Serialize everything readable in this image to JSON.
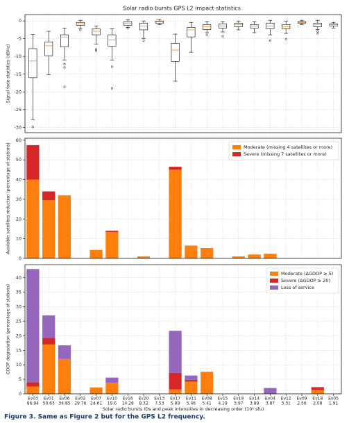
{
  "caption": "Figure 3. Same as Figure 2 but for the GPS L2 frequency.",
  "chart_data": [
    {
      "type": "box",
      "title": "Solar radio bursts GPS L2 impact statistics",
      "ylabel": "Signal fade statistics (dBHz)",
      "ylim": [
        -31.5,
        1.8
      ],
      "yticks": [
        -30,
        -25,
        -20,
        -15,
        -10,
        -5,
        0
      ],
      "grid": true,
      "color": "#000000",
      "median_color": "#ff7f0e",
      "whisker_high": [
        -3.8,
        -2.9,
        -2,
        0.2,
        -1.4,
        -2.2,
        0.4,
        0,
        0.4,
        -3.7,
        -0.4,
        -0.2,
        -0.2,
        0,
        -0.2,
        0.2,
        0,
        0.2,
        0.2,
        -0.4
      ],
      "q3": [
        -7.8,
        -5.9,
        -3.9,
        -0.4,
        -2.2,
        -3.9,
        -0.2,
        -0.6,
        0,
        -6.3,
        -1.8,
        -1,
        -0.8,
        -0.6,
        -1,
        -0.6,
        -1,
        -0.2,
        -0.6,
        -0.8
      ],
      "median": [
        -11.3,
        -7,
        -4.5,
        -0.8,
        -2.9,
        -5.3,
        -0.6,
        -1.4,
        -0.2,
        -8.2,
        -2.5,
        -1.6,
        -1.4,
        -1,
        -1.4,
        -1.4,
        -1.6,
        -0.4,
        -1,
        -1
      ],
      "q1": [
        -16,
        -9.8,
        -7.3,
        -1.2,
        -3.9,
        -7.1,
        -1.2,
        -2.5,
        -0.6,
        -11.4,
        -4.5,
        -2.4,
        -2,
        -1.6,
        -2,
        -2.2,
        -2.2,
        -0.6,
        -1.6,
        -1.4
      ],
      "whisker_low": [
        -27.8,
        -15.1,
        -11,
        -2,
        -6.5,
        -11,
        -1.8,
        -4.9,
        -1,
        -17,
        -8.8,
        -3.3,
        -3.1,
        -2.5,
        -3.3,
        -3.9,
        -3.5,
        -1,
        -2.4,
        -2
      ],
      "outliers": [
        [
          -29.9
        ],
        [],
        [
          -12.2,
          -13.1,
          -18.6
        ],
        [
          -2.5
        ],
        [
          -8,
          -8.4
        ],
        [
          -12.9,
          -19
        ],
        [
          -2
        ],
        [
          -5.5
        ],
        [],
        [],
        [],
        [
          -3.9
        ],
        [
          -4.3
        ],
        [],
        [],
        [
          -5.5
        ],
        [
          -5.1
        ],
        [],
        [
          -2.9,
          -3.5
        ],
        []
      ]
    },
    {
      "type": "bar",
      "stacked": true,
      "ylabel": "Available satellites reduction (percentage of stations)",
      "ylim": [
        0,
        61
      ],
      "yticks": [
        0,
        10,
        20,
        30,
        40,
        50,
        60
      ],
      "grid": true,
      "legend": "upper right",
      "series": [
        {
          "name": "Moderate (missing 4 satellites or more)",
          "color": "#ff7f0e",
          "values": [
            40,
            29.5,
            32,
            0,
            4.3,
            13.3,
            0,
            1,
            0,
            45,
            6.5,
            5.3,
            0,
            1,
            2,
            2.3,
            0,
            0,
            0,
            0
          ]
        },
        {
          "name": "Severe (missing 7 satellites or more)",
          "color": "#d62728",
          "values": [
            17.5,
            4.5,
            0,
            0,
            0,
            0.7,
            0,
            0,
            0,
            1.5,
            0,
            0,
            0,
            0,
            0,
            0,
            0,
            0,
            0,
            0
          ]
        }
      ]
    },
    {
      "type": "bar",
      "stacked": true,
      "ylabel": "GDOP degradation (percentage of stations)",
      "xlabel": "Solar radio bursts IDs and peak intensities in decreasing order (10² sfu)",
      "categories": [
        "Ev03",
        "Ev01",
        "Ev06",
        "Ev02",
        "Ev07",
        "Ev10",
        "Ev16",
        "Ev20",
        "Ev13",
        "Ev17",
        "Ev11",
        "Ev08",
        "Ev15",
        "Ev19",
        "Ev14",
        "Ev04",
        "Ev12",
        "Ev09",
        "Ev18",
        "Ev05"
      ],
      "peak_intensities": [
        86.94,
        50.63,
        34.85,
        29.76,
        24.61,
        19.6,
        14.28,
        8.32,
        7.53,
        5.89,
        5.46,
        5.41,
        4.19,
        3.97,
        3.89,
        3.87,
        3.31,
        2.56,
        2.08,
        1.91
      ],
      "ylim": [
        0,
        44.5
      ],
      "yticks": [
        0,
        5,
        10,
        15,
        20,
        25,
        30,
        35,
        40
      ],
      "grid": true,
      "legend": "upper right",
      "series": [
        {
          "name": "Moderate (ΔGDOP ≥ 5)",
          "color": "#ff7f0e",
          "values": [
            2.5,
            17,
            12,
            0,
            2.2,
            3.8,
            0,
            0,
            0,
            1.5,
            4.2,
            7.6,
            0,
            0,
            0,
            0,
            0,
            0,
            1.3,
            0
          ]
        },
        {
          "name": "Severe (ΔGDOP ≥ 20)",
          "color": "#d62728",
          "values": [
            1.5,
            2.3,
            0,
            0,
            0,
            0,
            0,
            0,
            0,
            5.7,
            0.6,
            0,
            0,
            0,
            0,
            0,
            0,
            0,
            1,
            0
          ]
        },
        {
          "name": "Loss of service",
          "color": "#9467bd",
          "values": [
            39,
            7.7,
            4.7,
            0,
            0,
            1.8,
            0,
            0,
            0,
            14.5,
            1.5,
            0,
            0,
            0,
            0,
            2,
            0,
            0,
            0,
            0
          ]
        }
      ]
    }
  ]
}
